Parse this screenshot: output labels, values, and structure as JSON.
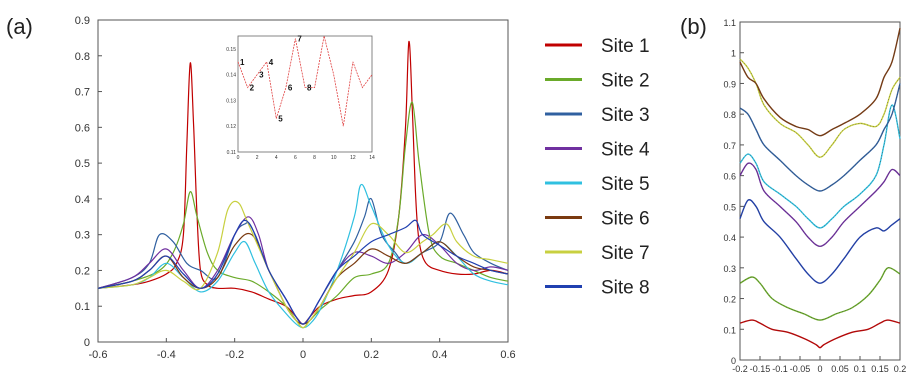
{
  "chart_data": [
    {
      "id": "panel-a",
      "type": "line",
      "panel_label": "(a)",
      "xlim": [
        -0.6,
        0.6
      ],
      "ylim": [
        0,
        0.9
      ],
      "xticks": [
        -0.6,
        -0.4,
        -0.2,
        0,
        0.2,
        0.4,
        0.6
      ],
      "xtick_labels": [
        "-0.6",
        "-0.4",
        "-0.2",
        "0",
        "0.2",
        "0.4",
        "0.6"
      ],
      "yticks": [
        0,
        0.1,
        0.2,
        0.3,
        0.4,
        0.5,
        0.6,
        0.7,
        0.8,
        0.9
      ],
      "ytick_labels": [
        "0",
        "0.1",
        "0.2",
        "0.3",
        "0.4",
        "0.5",
        "0.6",
        "0.7",
        "0.8",
        "0.9"
      ],
      "grid": false,
      "legend_placement": "right-outside",
      "series": [
        {
          "name": "Site 1",
          "color": "#c00000",
          "x": [
            -0.6,
            -0.5,
            -0.45,
            -0.4,
            -0.37,
            -0.35,
            -0.34,
            -0.33,
            -0.32,
            -0.31,
            -0.3,
            -0.28,
            -0.25,
            -0.2,
            -0.15,
            -0.1,
            -0.05,
            -0.02,
            0,
            0.02,
            0.05,
            0.1,
            0.15,
            0.2,
            0.25,
            0.28,
            0.3,
            0.31,
            0.32,
            0.33,
            0.34,
            0.36,
            0.4,
            0.45,
            0.5,
            0.55,
            0.6
          ],
          "y": [
            0.15,
            0.16,
            0.17,
            0.19,
            0.22,
            0.3,
            0.55,
            0.78,
            0.6,
            0.35,
            0.2,
            0.16,
            0.15,
            0.15,
            0.14,
            0.12,
            0.1,
            0.07,
            0.05,
            0.07,
            0.1,
            0.12,
            0.13,
            0.14,
            0.2,
            0.35,
            0.6,
            0.84,
            0.65,
            0.4,
            0.28,
            0.22,
            0.2,
            0.19,
            0.19,
            0.2,
            0.19
          ]
        },
        {
          "name": "Site 2",
          "color": "#6aaa2a",
          "x": [
            -0.6,
            -0.5,
            -0.42,
            -0.38,
            -0.35,
            -0.33,
            -0.31,
            -0.28,
            -0.25,
            -0.2,
            -0.15,
            -0.1,
            -0.05,
            -0.02,
            0,
            0.02,
            0.05,
            0.1,
            0.15,
            0.2,
            0.25,
            0.28,
            0.3,
            0.32,
            0.34,
            0.37,
            0.4,
            0.45,
            0.5,
            0.55,
            0.6
          ],
          "y": [
            0.15,
            0.17,
            0.2,
            0.25,
            0.33,
            0.42,
            0.35,
            0.25,
            0.2,
            0.18,
            0.17,
            0.14,
            0.1,
            0.06,
            0.04,
            0.06,
            0.09,
            0.13,
            0.18,
            0.19,
            0.22,
            0.35,
            0.55,
            0.67,
            0.5,
            0.3,
            0.24,
            0.22,
            0.2,
            0.18,
            0.17
          ]
        },
        {
          "name": "Site 3",
          "color": "#3060a0",
          "x": [
            -0.6,
            -0.5,
            -0.45,
            -0.42,
            -0.38,
            -0.34,
            -0.3,
            -0.25,
            -0.2,
            -0.17,
            -0.15,
            -0.1,
            -0.05,
            -0.02,
            0,
            0.02,
            0.05,
            0.1,
            0.15,
            0.18,
            0.2,
            0.23,
            0.27,
            0.3,
            0.35,
            0.4,
            0.43,
            0.47,
            0.5,
            0.55,
            0.6
          ],
          "y": [
            0.15,
            0.18,
            0.22,
            0.3,
            0.28,
            0.22,
            0.2,
            0.18,
            0.3,
            0.33,
            0.32,
            0.2,
            0.12,
            0.07,
            0.05,
            0.07,
            0.12,
            0.2,
            0.28,
            0.35,
            0.4,
            0.3,
            0.25,
            0.22,
            0.25,
            0.28,
            0.36,
            0.3,
            0.25,
            0.22,
            0.2
          ]
        },
        {
          "name": "Site 4",
          "color": "#7030a0",
          "x": [
            -0.6,
            -0.5,
            -0.45,
            -0.4,
            -0.35,
            -0.3,
            -0.25,
            -0.2,
            -0.16,
            -0.13,
            -0.1,
            -0.05,
            -0.02,
            0,
            0.02,
            0.05,
            0.1,
            0.15,
            0.2,
            0.25,
            0.3,
            0.35,
            0.4,
            0.45,
            0.5,
            0.55,
            0.6
          ],
          "y": [
            0.15,
            0.18,
            0.22,
            0.26,
            0.2,
            0.15,
            0.2,
            0.3,
            0.35,
            0.3,
            0.2,
            0.12,
            0.07,
            0.05,
            0.07,
            0.12,
            0.2,
            0.25,
            0.24,
            0.22,
            0.25,
            0.3,
            0.27,
            0.22,
            0.2,
            0.21,
            0.2
          ]
        },
        {
          "name": "Site 5",
          "color": "#30c0e0",
          "x": [
            -0.6,
            -0.5,
            -0.45,
            -0.4,
            -0.35,
            -0.3,
            -0.25,
            -0.2,
            -0.17,
            -0.14,
            -0.1,
            -0.05,
            -0.02,
            0,
            0.02,
            0.05,
            0.1,
            0.15,
            0.17,
            0.2,
            0.25,
            0.3,
            0.35,
            0.4,
            0.45,
            0.5,
            0.55,
            0.6
          ],
          "y": [
            0.15,
            0.16,
            0.18,
            0.22,
            0.18,
            0.14,
            0.17,
            0.25,
            0.28,
            0.22,
            0.14,
            0.08,
            0.05,
            0.04,
            0.05,
            0.09,
            0.2,
            0.35,
            0.44,
            0.38,
            0.27,
            0.22,
            0.25,
            0.28,
            0.24,
            0.19,
            0.17,
            0.16
          ]
        },
        {
          "name": "Site 6",
          "color": "#7a3a10",
          "x": [
            -0.6,
            -0.5,
            -0.45,
            -0.4,
            -0.35,
            -0.3,
            -0.25,
            -0.2,
            -0.15,
            -0.1,
            -0.05,
            -0.02,
            0,
            0.02,
            0.05,
            0.1,
            0.15,
            0.2,
            0.25,
            0.3,
            0.35,
            0.4,
            0.45,
            0.5,
            0.55,
            0.6
          ],
          "y": [
            0.15,
            0.17,
            0.2,
            0.24,
            0.18,
            0.15,
            0.18,
            0.27,
            0.3,
            0.2,
            0.1,
            0.06,
            0.05,
            0.06,
            0.1,
            0.18,
            0.22,
            0.26,
            0.24,
            0.22,
            0.25,
            0.28,
            0.24,
            0.21,
            0.2,
            0.19
          ]
        },
        {
          "name": "Site 7",
          "color": "#c8d040",
          "x": [
            -0.6,
            -0.5,
            -0.45,
            -0.4,
            -0.35,
            -0.3,
            -0.25,
            -0.22,
            -0.19,
            -0.16,
            -0.1,
            -0.05,
            -0.02,
            0,
            0.02,
            0.05,
            0.1,
            0.15,
            0.2,
            0.25,
            0.3,
            0.35,
            0.38,
            0.42,
            0.45,
            0.5,
            0.55,
            0.6
          ],
          "y": [
            0.15,
            0.16,
            0.18,
            0.2,
            0.17,
            0.15,
            0.25,
            0.37,
            0.39,
            0.33,
            0.2,
            0.1,
            0.06,
            0.04,
            0.06,
            0.1,
            0.18,
            0.25,
            0.33,
            0.3,
            0.25,
            0.28,
            0.3,
            0.33,
            0.28,
            0.24,
            0.23,
            0.22
          ]
        },
        {
          "name": "Site 8",
          "color": "#2040b0",
          "x": [
            -0.6,
            -0.5,
            -0.45,
            -0.4,
            -0.35,
            -0.3,
            -0.25,
            -0.2,
            -0.17,
            -0.14,
            -0.1,
            -0.05,
            -0.02,
            0,
            0.02,
            0.05,
            0.1,
            0.15,
            0.2,
            0.25,
            0.3,
            0.33,
            0.35,
            0.4,
            0.45,
            0.5,
            0.55,
            0.6
          ],
          "y": [
            0.15,
            0.17,
            0.2,
            0.24,
            0.19,
            0.15,
            0.19,
            0.3,
            0.34,
            0.3,
            0.2,
            0.12,
            0.07,
            0.05,
            0.07,
            0.12,
            0.2,
            0.24,
            0.28,
            0.3,
            0.32,
            0.34,
            0.3,
            0.27,
            0.24,
            0.22,
            0.2,
            0.19
          ]
        }
      ],
      "inset": {
        "type": "line",
        "color": "#e04040",
        "xlim": [
          0,
          14
        ],
        "ylim": [
          0.11,
          0.155
        ],
        "xticks": [
          0,
          2,
          4,
          6,
          8,
          10,
          12,
          14
        ],
        "xtick_labels": [
          "0",
          "2",
          "4",
          "6",
          "8",
          "10",
          "12",
          "14"
        ],
        "yticks": [
          0.11,
          0.12,
          0.13,
          0.14,
          0.15
        ],
        "ytick_labels": [
          "0.11",
          "0.12",
          "0.13",
          "0.14",
          "0.15"
        ],
        "x": [
          0,
          1,
          2,
          3,
          4,
          5,
          6,
          7,
          8,
          9,
          10,
          11,
          12,
          13,
          14
        ],
        "y": [
          0.145,
          0.135,
          0.14,
          0.145,
          0.123,
          0.135,
          0.154,
          0.135,
          0.135,
          0.155,
          0.14,
          0.12,
          0.145,
          0.135,
          0.14
        ],
        "point_labels": [
          {
            "text": "1",
            "x": 0,
            "y": 0.145
          },
          {
            "text": "2",
            "x": 1,
            "y": 0.135
          },
          {
            "text": "3",
            "x": 2,
            "y": 0.14
          },
          {
            "text": "4",
            "x": 3,
            "y": 0.145
          },
          {
            "text": "5",
            "x": 4,
            "y": 0.123
          },
          {
            "text": "6",
            "x": 5,
            "y": 0.135
          },
          {
            "text": "7",
            "x": 6,
            "y": 0.154
          },
          {
            "text": "8",
            "x": 7,
            "y": 0.135
          }
        ]
      }
    },
    {
      "id": "panel-b",
      "type": "line",
      "panel_label": "(b)",
      "xlim": [
        -0.2,
        0.2
      ],
      "ylim": [
        0,
        1.1
      ],
      "xticks": [
        -0.2,
        -0.15,
        -0.1,
        -0.05,
        0,
        0.05,
        0.1,
        0.15,
        0.2
      ],
      "xtick_labels": [
        "-0.2",
        "-0.15",
        "-0.1",
        "-0.05",
        "0",
        "0.05",
        "0.1",
        "0.15",
        "0.2"
      ],
      "yticks": [
        0,
        0.1,
        0.2,
        0.3,
        0.4,
        0.5,
        0.6,
        0.7,
        0.8,
        0.9,
        1,
        1.1
      ],
      "ytick_labels": [
        "0",
        "0.1",
        "0.2",
        "0.3",
        "0.4",
        "0.5",
        "0.6",
        "0.7",
        "0.8",
        "0.9",
        "1",
        "1.1"
      ],
      "grid": false,
      "series": [
        {
          "name": "Site 1",
          "color": "#c00000",
          "x": [
            -0.2,
            -0.17,
            -0.15,
            -0.12,
            -0.08,
            -0.04,
            -0.01,
            0,
            0.01,
            0.04,
            0.08,
            0.12,
            0.15,
            0.17,
            0.2
          ],
          "y": [
            0.12,
            0.13,
            0.12,
            0.1,
            0.09,
            0.07,
            0.05,
            0.04,
            0.05,
            0.07,
            0.09,
            0.1,
            0.12,
            0.13,
            0.12
          ]
        },
        {
          "name": "Site 2",
          "color": "#6aaa2a",
          "x": [
            -0.2,
            -0.17,
            -0.15,
            -0.12,
            -0.08,
            -0.04,
            0,
            0.04,
            0.08,
            0.12,
            0.15,
            0.17,
            0.2
          ],
          "y": [
            0.25,
            0.27,
            0.25,
            0.2,
            0.17,
            0.15,
            0.13,
            0.15,
            0.17,
            0.21,
            0.26,
            0.3,
            0.28
          ]
        },
        {
          "name": "Site 8",
          "color": "#2040b0",
          "x": [
            -0.2,
            -0.18,
            -0.16,
            -0.14,
            -0.1,
            -0.06,
            -0.03,
            0,
            0.03,
            0.06,
            0.1,
            0.14,
            0.16,
            0.18,
            0.2
          ],
          "y": [
            0.46,
            0.52,
            0.5,
            0.45,
            0.4,
            0.33,
            0.28,
            0.25,
            0.28,
            0.33,
            0.4,
            0.43,
            0.42,
            0.44,
            0.46
          ]
        },
        {
          "name": "Site 4",
          "color": "#7030a0",
          "x": [
            -0.2,
            -0.18,
            -0.16,
            -0.14,
            -0.1,
            -0.06,
            -0.03,
            0,
            0.03,
            0.06,
            0.1,
            0.14,
            0.16,
            0.18,
            0.2
          ],
          "y": [
            0.6,
            0.64,
            0.62,
            0.55,
            0.5,
            0.45,
            0.4,
            0.37,
            0.4,
            0.45,
            0.5,
            0.55,
            0.58,
            0.62,
            0.6
          ]
        },
        {
          "name": "Site 5",
          "color": "#30c0e0",
          "x": [
            -0.2,
            -0.18,
            -0.16,
            -0.14,
            -0.1,
            -0.06,
            -0.03,
            0,
            0.03,
            0.06,
            0.1,
            0.14,
            0.16,
            0.18,
            0.2
          ],
          "y": [
            0.64,
            0.67,
            0.64,
            0.58,
            0.54,
            0.5,
            0.46,
            0.43,
            0.46,
            0.5,
            0.54,
            0.6,
            0.7,
            0.83,
            0.72
          ]
        },
        {
          "name": "Site 3",
          "color": "#3060a0",
          "x": [
            -0.2,
            -0.18,
            -0.16,
            -0.14,
            -0.1,
            -0.06,
            -0.03,
            0,
            0.03,
            0.06,
            0.1,
            0.14,
            0.16,
            0.18,
            0.2
          ],
          "y": [
            0.82,
            0.8,
            0.75,
            0.7,
            0.65,
            0.6,
            0.57,
            0.55,
            0.57,
            0.6,
            0.65,
            0.7,
            0.75,
            0.8,
            0.9
          ]
        },
        {
          "name": "Site 7",
          "color": "#c8d040",
          "x": [
            -0.2,
            -0.18,
            -0.16,
            -0.14,
            -0.1,
            -0.06,
            -0.03,
            0,
            0.03,
            0.06,
            0.1,
            0.14,
            0.16,
            0.18,
            0.2
          ],
          "y": [
            0.98,
            0.95,
            0.9,
            0.83,
            0.77,
            0.74,
            0.7,
            0.66,
            0.7,
            0.75,
            0.77,
            0.76,
            0.8,
            0.88,
            0.92
          ]
        },
        {
          "name": "Site 6",
          "color": "#7a3a10",
          "x": [
            -0.2,
            -0.18,
            -0.16,
            -0.14,
            -0.1,
            -0.06,
            -0.03,
            0,
            0.03,
            0.06,
            0.1,
            0.14,
            0.16,
            0.18,
            0.2
          ],
          "y": [
            0.97,
            0.92,
            0.9,
            0.85,
            0.79,
            0.76,
            0.75,
            0.73,
            0.75,
            0.77,
            0.8,
            0.85,
            0.92,
            0.97,
            1.08
          ]
        }
      ]
    }
  ]
}
